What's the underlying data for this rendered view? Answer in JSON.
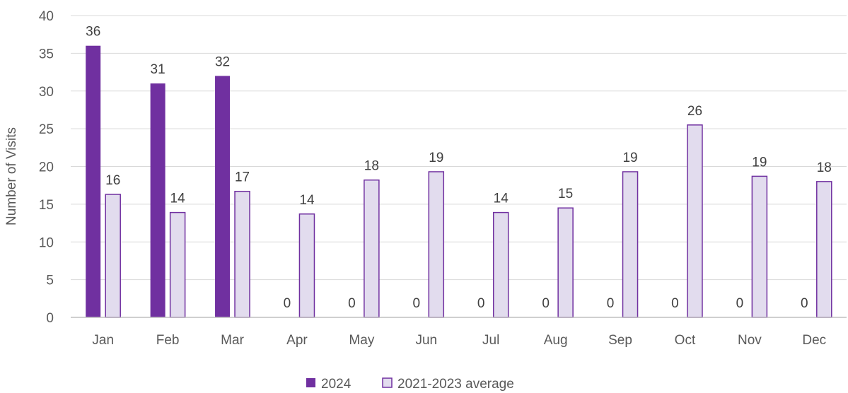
{
  "chart_data": {
    "type": "bar",
    "title": "",
    "xlabel": "",
    "ylabel": "Number of Visits",
    "ylim": [
      0,
      40
    ],
    "yticks": [
      0,
      5,
      10,
      15,
      20,
      25,
      30,
      35,
      40
    ],
    "grid": true,
    "legend_position": "bottom",
    "categories": [
      "Jan",
      "Feb",
      "Mar",
      "Apr",
      "May",
      "Jun",
      "Jul",
      "Aug",
      "Sep",
      "Oct",
      "Nov",
      "Dec"
    ],
    "series": [
      {
        "name": "2024",
        "values": [
          36,
          31,
          32,
          0,
          0,
          0,
          0,
          0,
          0,
          0,
          0,
          0
        ],
        "labels": [
          "36",
          "31",
          "32",
          "0",
          "0",
          "0",
          "0",
          "0",
          "0",
          "0",
          "0",
          "0"
        ],
        "fill": "#7030a0",
        "stroke": "#7030a0"
      },
      {
        "name": "2021-2023 average",
        "values": [
          16.3,
          13.9,
          16.7,
          13.7,
          18.2,
          19.3,
          13.9,
          14.5,
          19.3,
          25.5,
          18.7,
          18.0
        ],
        "labels": [
          "16",
          "14",
          "17",
          "14",
          "18",
          "19",
          "14",
          "15",
          "19",
          "26",
          "19",
          "18"
        ],
        "fill": "#e2dcee",
        "stroke": "#7030a0"
      }
    ]
  }
}
